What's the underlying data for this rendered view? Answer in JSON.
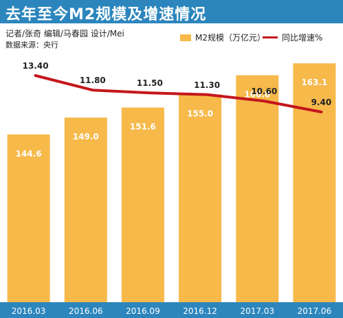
{
  "chart_data": {
    "type": "bar",
    "title": "去年至今M2规模及增速情况",
    "credit": "记者/张奇  编辑/马春园  设计/Mei",
    "source": "数据来源：央行",
    "categories": [
      "2016.03",
      "2016.06",
      "2016.09",
      "2016.12",
      "2017.03",
      "2017.06"
    ],
    "series": [
      {
        "name": "M2规模（万亿元）",
        "type": "bar",
        "values": [
          144.6,
          149.0,
          151.6,
          155.0,
          160.0,
          163.1
        ],
        "labels": [
          "144.6",
          "149.0",
          "151.6",
          "155.0",
          "160.0",
          "163.1"
        ],
        "color": "#f6b94a"
      },
      {
        "name": "同比增速%",
        "type": "line",
        "values": [
          13.4,
          11.8,
          11.5,
          11.3,
          10.6,
          9.4
        ],
        "labels": [
          "13.40",
          "11.80",
          "11.50",
          "11.30",
          "10.60",
          "9.40"
        ],
        "color": "#c4161c"
      }
    ],
    "legend_position": "top-right",
    "grid": false,
    "header_color": "#2c86bd"
  }
}
